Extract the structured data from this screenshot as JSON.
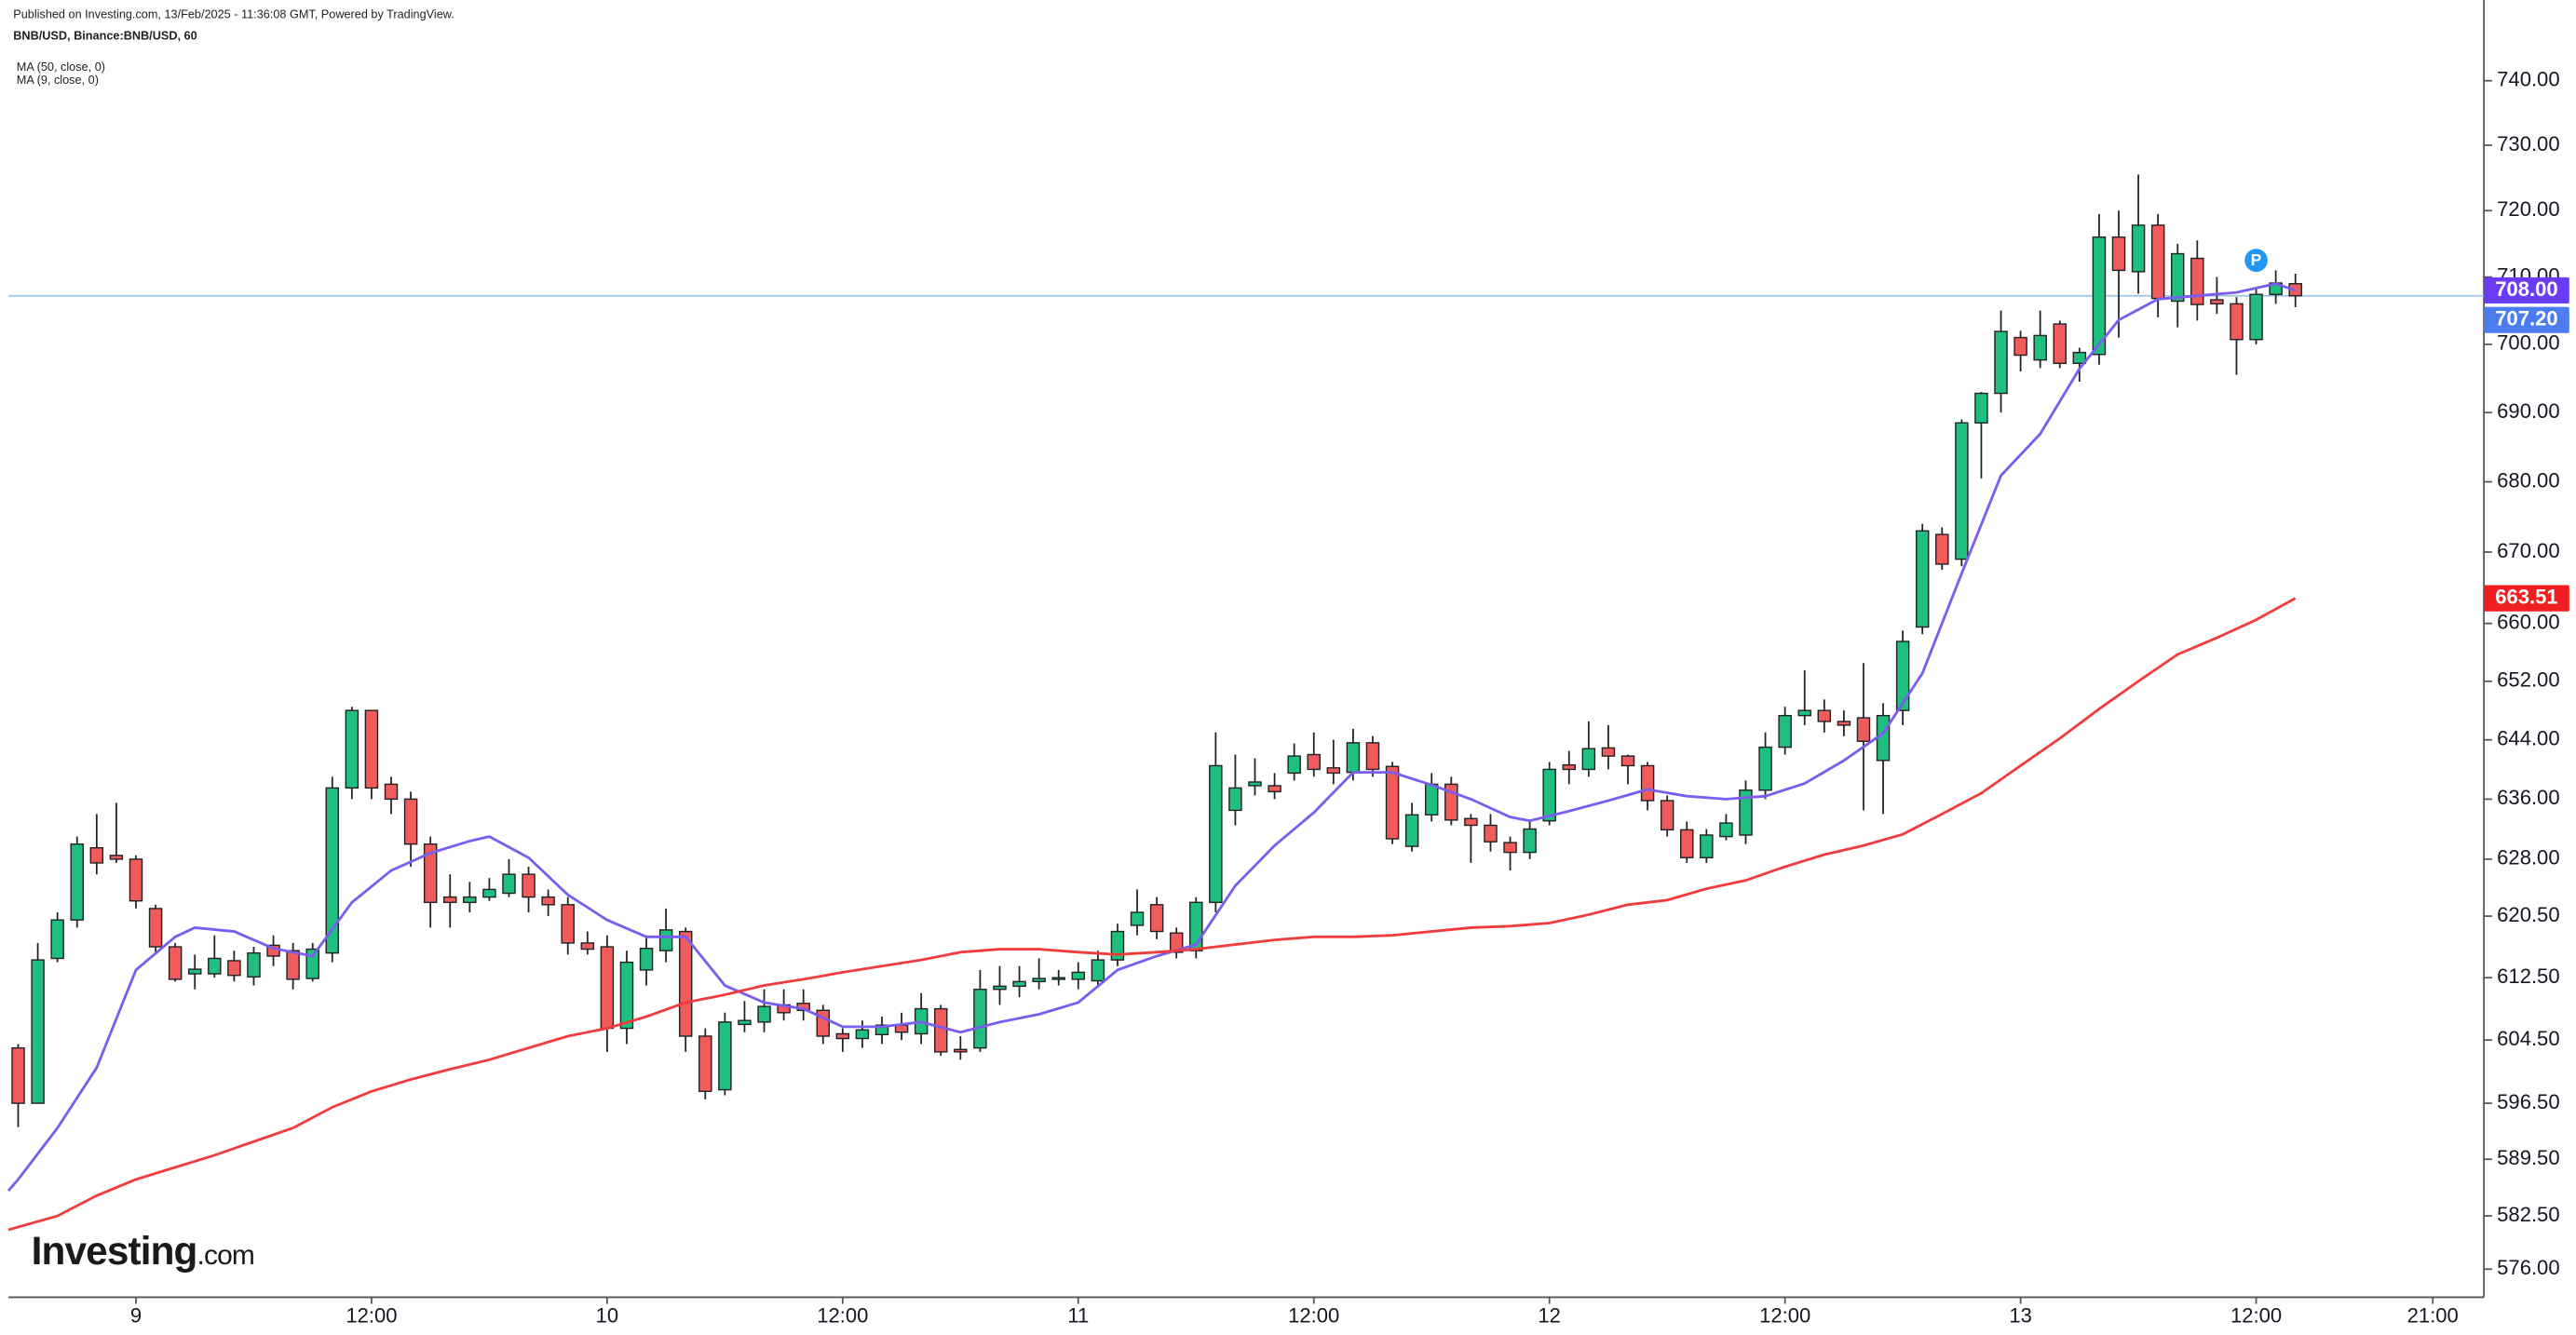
{
  "chart_data": {
    "type": "candlestick",
    "header": [
      "Published on Investing.com, 13/Feb/2025 - 11:36:08 GMT, Powered by TradingView.",
      "BNB/USD, Binance:BNB/USD, 60",
      "MA (50, close, 0)",
      "MA (9, close, 0)"
    ],
    "logo": {
      "name": "Investing",
      "suffix": ".com"
    },
    "log_scale": true,
    "up_color": "#1fbf7f",
    "down_color": "#f05b5b",
    "outline_color": "#222222",
    "x": [
      -6,
      -5,
      -4,
      -3,
      -2,
      -1,
      0,
      1,
      2,
      3,
      4,
      5,
      6,
      7,
      8,
      9,
      10,
      11,
      12,
      13,
      14,
      15,
      16,
      17,
      18,
      19,
      20,
      21,
      22,
      23,
      24,
      25,
      26,
      27,
      28,
      29,
      30,
      31,
      32,
      33,
      34,
      35,
      36,
      37,
      38,
      39,
      40,
      41,
      42,
      43,
      44,
      45,
      46,
      47,
      48,
      49,
      50,
      51,
      52,
      53,
      54,
      55,
      56,
      57,
      58,
      59,
      60,
      61,
      62,
      63,
      64,
      65,
      66,
      67,
      68,
      69,
      70,
      71,
      72,
      73,
      74,
      75,
      76,
      77,
      78,
      79,
      80,
      81,
      82,
      83,
      84,
      85,
      86,
      87,
      88,
      89,
      90,
      91,
      92,
      93,
      94,
      95,
      96,
      97,
      98,
      99,
      100,
      101,
      102,
      103,
      104,
      105,
      106,
      107,
      108,
      109,
      110
    ],
    "open": [
      603.5,
      596.5,
      615,
      620,
      629.5,
      628.5,
      628,
      621.5,
      616.5,
      613,
      613,
      614.7,
      612.6,
      616.7,
      616,
      612.4,
      615.7,
      637.5,
      648,
      638,
      636,
      630,
      623,
      622.3,
      623,
      623.5,
      626,
      623,
      622,
      617,
      616.5,
      606,
      613.5,
      616,
      618.5,
      605,
      598.2,
      606.5,
      606.8,
      609,
      609.2,
      608.3,
      605.3,
      604.7,
      605.2,
      606.4,
      605.3,
      608.5,
      603.3,
      603.5,
      611,
      611.4,
      612,
      612.3,
      612.3,
      612.1,
      614.8,
      619.3,
      622,
      618.3,
      616,
      622.3,
      634.5,
      637.8,
      637.8,
      639.5,
      642,
      640.2,
      639.6,
      643.6,
      640.4,
      629.7,
      633.9,
      638,
      633.4,
      632.5,
      630.2,
      628.9,
      633.1,
      640.6,
      640,
      642.9,
      641.8,
      640.5,
      635.8,
      631.9,
      628.2,
      631,
      631.2,
      637.2,
      643,
      647.3,
      648,
      646.5,
      647,
      641.2,
      648,
      659.5,
      672.5,
      669,
      688.5,
      692.8,
      701,
      697.7,
      703,
      697.2,
      698.5,
      716,
      710.8,
      717.8,
      706.4,
      712.8,
      706.6,
      706,
      700.7,
      707.4,
      709
    ],
    "high": [
      604,
      617,
      621,
      631,
      634,
      635.5,
      628.5,
      622,
      617,
      615.5,
      618,
      616,
      616.5,
      618,
      617,
      617,
      639,
      648.5,
      648,
      639,
      637,
      631,
      626,
      625,
      625.5,
      628,
      627,
      624,
      623,
      618.5,
      618,
      616,
      618,
      621.5,
      619,
      606,
      608,
      609.5,
      611,
      611,
      611,
      609,
      606,
      607,
      607.5,
      608,
      610.5,
      609,
      605,
      613.5,
      614,
      614,
      615,
      613.5,
      614.5,
      616,
      619.5,
      624,
      623,
      619,
      623,
      645,
      642,
      641.5,
      639.5,
      643.5,
      645,
      644,
      645.5,
      644.5,
      641,
      635.5,
      639.5,
      639,
      634,
      634,
      631,
      633,
      641,
      642.5,
      646.5,
      646,
      642,
      641,
      636.5,
      633,
      632,
      634,
      638.5,
      645,
      648.5,
      653.5,
      649.5,
      648,
      654.5,
      649,
      659,
      674,
      673.5,
      689,
      693,
      705,
      702,
      705,
      703.5,
      699.5,
      719.5,
      720,
      725.5,
      719.5,
      715,
      715.5,
      710,
      707,
      708.5,
      711,
      710.5
    ],
    "low": [
      593.5,
      596.5,
      614.5,
      619,
      626,
      627.5,
      621.5,
      615.5,
      612,
      611,
      612.5,
      612,
      611.5,
      614,
      611,
      612,
      614.5,
      636,
      636,
      634,
      627,
      619,
      619,
      621,
      622.5,
      623,
      621,
      620.5,
      615.5,
      615.5,
      603,
      604,
      611.5,
      614.5,
      603,
      597,
      597.5,
      605.5,
      605.5,
      607,
      607,
      604,
      603,
      603.5,
      604,
      604.5,
      604,
      602.5,
      602,
      603,
      609,
      610,
      611,
      611.5,
      611,
      611.5,
      614,
      618,
      617.5,
      615,
      615,
      621,
      632.5,
      636.5,
      636,
      638.5,
      639,
      638,
      638.5,
      639,
      630,
      629,
      633,
      632.5,
      627.5,
      629,
      626.5,
      628,
      632.5,
      638,
      639,
      640,
      638,
      634.5,
      631,
      627.5,
      627.5,
      630.5,
      630,
      636,
      642,
      646,
      645,
      644.5,
      634.5,
      634,
      646,
      658.5,
      667.5,
      668,
      680.5,
      690,
      696,
      696.5,
      696.5,
      694.5,
      697,
      701,
      707.5,
      704,
      702.5,
      703.5,
      704.5,
      695.5,
      700,
      706,
      705.5
    ],
    "close": [
      596.5,
      614.8,
      620,
      630,
      627.5,
      628,
      622.5,
      616.5,
      612.3,
      613.6,
      615,
      612.8,
      615.7,
      615.3,
      612.3,
      616.2,
      637.5,
      648,
      637.5,
      636,
      630,
      622.3,
      622.3,
      623,
      624,
      626,
      623,
      622,
      617,
      616.2,
      606,
      614.5,
      616.3,
      618.7,
      605,
      598,
      606.8,
      607,
      608.8,
      608,
      608.3,
      605,
      604.7,
      605.8,
      606.4,
      605.5,
      608.5,
      603,
      603,
      611,
      611.4,
      612,
      612.4,
      612.5,
      613.2,
      614.8,
      618.5,
      621,
      618.5,
      615.8,
      622.3,
      640.5,
      637.5,
      638.3,
      637,
      641.8,
      640,
      639.5,
      643.6,
      640,
      630.7,
      633.9,
      638,
      633.2,
      632.5,
      630.3,
      628.9,
      632,
      640,
      640,
      642.8,
      641.8,
      640.5,
      635.8,
      631.9,
      628.2,
      631.2,
      632.8,
      637.2,
      643,
      647.3,
      648,
      646.5,
      646,
      643.8,
      647.3,
      657.5,
      673,
      668.3,
      688.5,
      692.8,
      701.9,
      698.4,
      701.3,
      697.2,
      698.8,
      716,
      711,
      717.8,
      706.8,
      713.5,
      705.9,
      706,
      700.7,
      707.4,
      709.1,
      707.2
    ],
    "lines": [
      {
        "name": "MA (9, close, 0)",
        "color": "#7b5cf0",
        "x": [
          -6.5,
          -6,
          -4,
          -2,
          0,
          2,
          3,
          5,
          7,
          9,
          11,
          13,
          15,
          17,
          18,
          20,
          22,
          24,
          26,
          28,
          30,
          32,
          34,
          36,
          38,
          40,
          42,
          44,
          46,
          48,
          50,
          52,
          54,
          56,
          58,
          60,
          62,
          64,
          66,
          68,
          70,
          71,
          73,
          75,
          77,
          79,
          81,
          83,
          85,
          87,
          89,
          91,
          93,
          95,
          97,
          99,
          101,
          103,
          105,
          107,
          109,
          110
        ],
        "values": [
          585.6,
          587,
          593.4,
          601,
          613.5,
          617.8,
          619,
          618.5,
          616.3,
          615.3,
          622.3,
          626.5,
          628.8,
          630.4,
          631,
          628.2,
          623.3,
          620,
          617.8,
          617.8,
          611.5,
          609.3,
          608.5,
          606.2,
          606.2,
          606.8,
          605.5,
          606.8,
          607.8,
          609.3,
          613.5,
          615.3,
          616.8,
          624.5,
          629.8,
          634.2,
          639.6,
          639.6,
          637.9,
          636,
          633.6,
          633.1,
          634.4,
          635.8,
          637.3,
          636.4,
          636,
          636.4,
          638.1,
          641.2,
          644.9,
          653.1,
          667,
          680.9,
          686.9,
          696.4,
          703.6,
          706.7,
          707.2,
          707.7,
          709,
          708
        ]
      },
      {
        "name": "MA (50, close, 0)",
        "color": "#f03c3c",
        "x": [
          -6.5,
          -4,
          -2,
          0,
          2,
          4,
          6,
          8,
          10,
          12,
          14,
          16,
          18,
          20,
          22,
          24,
          26,
          28,
          30,
          32,
          34,
          36,
          38,
          40,
          42,
          44,
          46,
          48,
          50,
          52,
          54,
          56,
          58,
          60,
          62,
          64,
          66,
          68,
          70,
          72,
          74,
          76,
          78,
          80,
          82,
          84,
          86,
          88,
          90,
          92,
          94,
          96,
          98,
          100,
          102,
          104,
          106,
          108,
          110
        ],
        "values": [
          580.8,
          582.5,
          585,
          587,
          588.5,
          590,
          591.7,
          593.4,
          596,
          598,
          599.5,
          600.8,
          602,
          603.5,
          605,
          606,
          607.5,
          609.3,
          610.3,
          611.5,
          612.3,
          613.2,
          614,
          614.8,
          615.8,
          616.2,
          616.2,
          615.8,
          615.5,
          615.8,
          616.2,
          616.8,
          617.4,
          617.8,
          617.8,
          618,
          618.5,
          619,
          619.2,
          619.6,
          620.7,
          622,
          622.6,
          624.1,
          625.2,
          627,
          628.6,
          629.8,
          631.3,
          634,
          636.8,
          640.5,
          644.2,
          648.2,
          652,
          655.7,
          658,
          660.5,
          663.51
        ]
      }
    ],
    "price_line": {
      "value": 707.2,
      "color": "#9ec5e8"
    },
    "price_labels": [
      {
        "value": 708,
        "label": "708.00",
        "color": "#6a3cf5"
      },
      {
        "value": 707.2,
        "label": "707.20",
        "color": "#4b7df0"
      },
      {
        "value": 663.51,
        "label": "663.51",
        "color": "#f01e1e"
      }
    ],
    "marker": {
      "text": "P",
      "x": 108,
      "y": 712.5,
      "color": "#2196f3"
    },
    "xlim": [
      -6.5,
      119.6
    ],
    "ylim": [
      572.6,
      752.7
    ],
    "xticks": [
      {
        "value": 0,
        "label": "9"
      },
      {
        "value": 12,
        "label": "12:00"
      },
      {
        "value": 24,
        "label": "10"
      },
      {
        "value": 36,
        "label": "12:00"
      },
      {
        "value": 48,
        "label": "11"
      },
      {
        "value": 60,
        "label": "12:00"
      },
      {
        "value": 72,
        "label": "12"
      },
      {
        "value": 84,
        "label": "12:00"
      },
      {
        "value": 96,
        "label": "13"
      },
      {
        "value": 108,
        "label": "12:00"
      },
      {
        "value": 117,
        "label": "21:00"
      }
    ],
    "yticks": [
      {
        "value": 740,
        "label": "740.00"
      },
      {
        "value": 730,
        "label": "730.00"
      },
      {
        "value": 720,
        "label": "720.00"
      },
      {
        "value": 710,
        "label": "710.00"
      },
      {
        "value": 700,
        "label": "700.00"
      },
      {
        "value": 690,
        "label": "690.00"
      },
      {
        "value": 680,
        "label": "680.00"
      },
      {
        "value": 670,
        "label": "670.00"
      },
      {
        "value": 660,
        "label": "660.00"
      },
      {
        "value": 652,
        "label": "652.00"
      },
      {
        "value": 644,
        "label": "644.00"
      },
      {
        "value": 636,
        "label": "636.00"
      },
      {
        "value": 628,
        "label": "628.00"
      },
      {
        "value": 620.5,
        "label": "620.50"
      },
      {
        "value": 612.5,
        "label": "612.50"
      },
      {
        "value": 604.5,
        "label": "604.50"
      },
      {
        "value": 596.5,
        "label": "596.50"
      },
      {
        "value": 589.5,
        "label": "589.50"
      },
      {
        "value": 582.5,
        "label": "582.50"
      },
      {
        "value": 576,
        "label": "576.00"
      }
    ],
    "grid": false
  }
}
